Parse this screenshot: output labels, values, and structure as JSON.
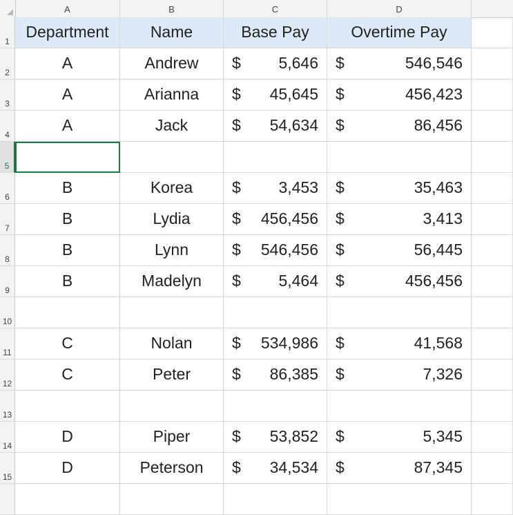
{
  "columns": [
    "A",
    "B",
    "C",
    "D"
  ],
  "row_numbers": [
    "1",
    "2",
    "3",
    "4",
    "5",
    "6",
    "7",
    "8",
    "9",
    "10",
    "11",
    "12",
    "13",
    "14",
    "15"
  ],
  "header_row": {
    "department": "Department",
    "name": "Name",
    "base_pay": "Base Pay",
    "overtime_pay": "Overtime Pay"
  },
  "currency_symbol": "$",
  "active_row": "5",
  "colors": {
    "header_fill": "#dce9f6",
    "excel_green": "#217346",
    "gridline": "#d9d9d9"
  },
  "rows": [
    {
      "department": "A",
      "name": "Andrew",
      "base_pay": "5,646",
      "overtime_pay": "546,546"
    },
    {
      "department": "A",
      "name": "Arianna",
      "base_pay": "45,645",
      "overtime_pay": "456,423"
    },
    {
      "department": "A",
      "name": "Jack",
      "base_pay": "54,634",
      "overtime_pay": "86,456"
    },
    {
      "department": "",
      "name": "",
      "base_pay": "",
      "overtime_pay": ""
    },
    {
      "department": "B",
      "name": "Korea",
      "base_pay": "3,453",
      "overtime_pay": "35,463"
    },
    {
      "department": "B",
      "name": "Lydia",
      "base_pay": "456,456",
      "overtime_pay": "3,413"
    },
    {
      "department": "B",
      "name": "Lynn",
      "base_pay": "546,456",
      "overtime_pay": "56,445"
    },
    {
      "department": "B",
      "name": "Madelyn",
      "base_pay": "5,464",
      "overtime_pay": "456,456"
    },
    {
      "department": "",
      "name": "",
      "base_pay": "",
      "overtime_pay": ""
    },
    {
      "department": "C",
      "name": "Nolan",
      "base_pay": "534,986",
      "overtime_pay": "41,568"
    },
    {
      "department": "C",
      "name": "Peter",
      "base_pay": "86,385",
      "overtime_pay": "7,326"
    },
    {
      "department": "",
      "name": "",
      "base_pay": "",
      "overtime_pay": ""
    },
    {
      "department": "D",
      "name": "Piper",
      "base_pay": "53,852",
      "overtime_pay": "5,345"
    },
    {
      "department": "D",
      "name": "Peterson",
      "base_pay": "34,534",
      "overtime_pay": "87,345"
    },
    {
      "department": "",
      "name": "",
      "base_pay": "",
      "overtime_pay": ""
    }
  ]
}
